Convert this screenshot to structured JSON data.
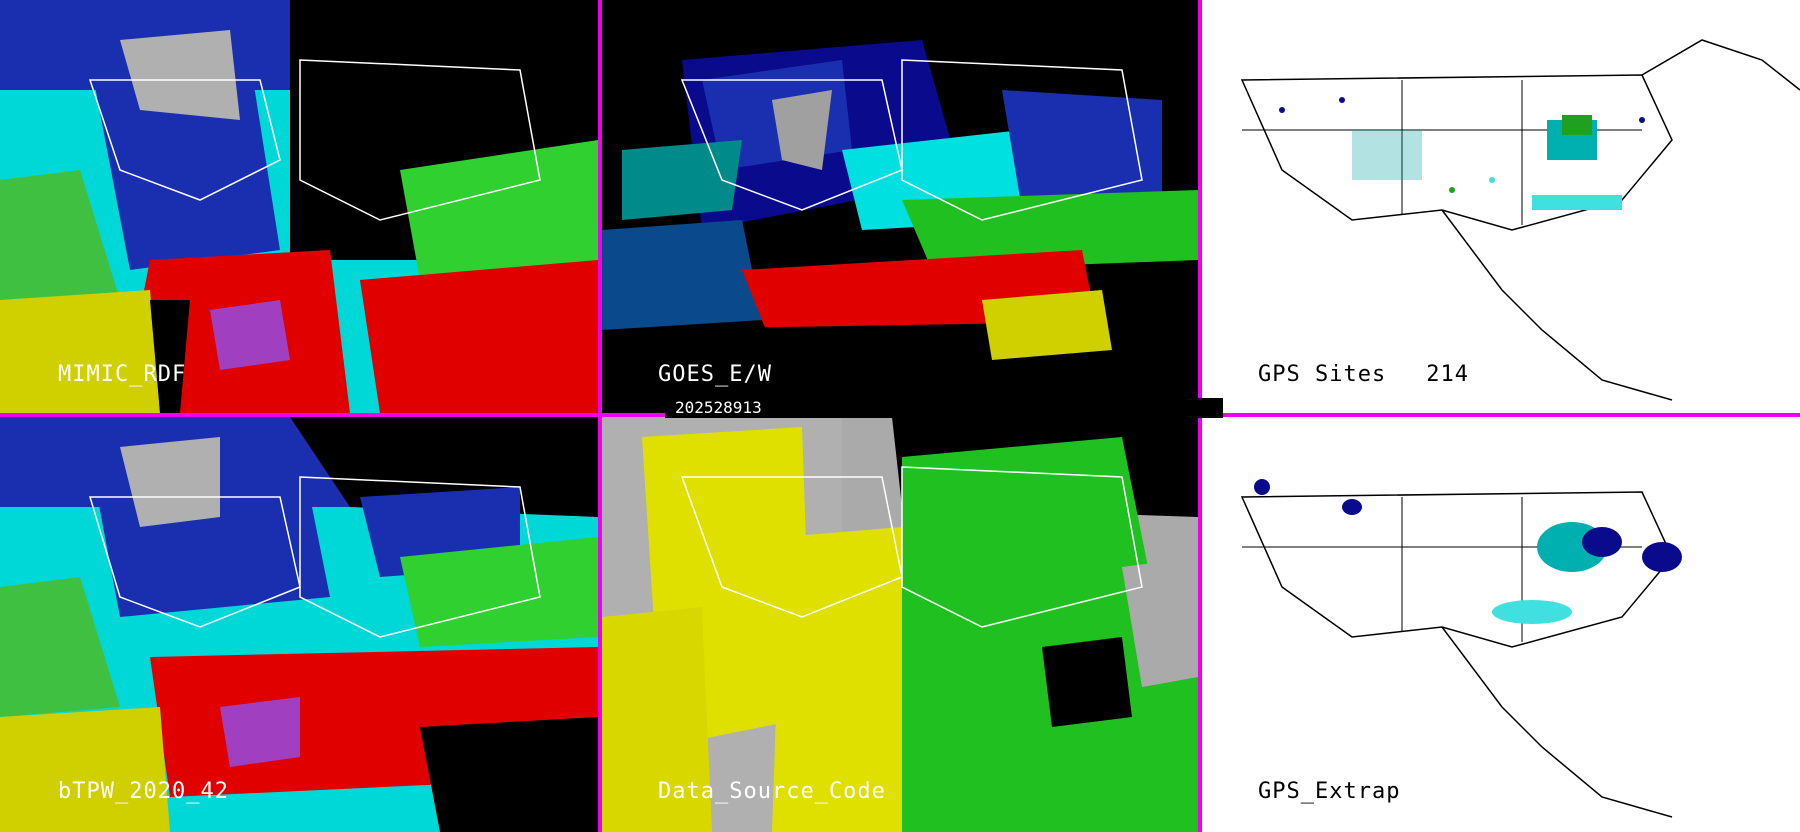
{
  "colors": {
    "divider": "#ee00ee",
    "palette": [
      "#000000",
      "#0a0a8c",
      "#2a3ad8",
      "#aaaaaa",
      "#00e0e0",
      "#00c000",
      "#40e040",
      "#e0e000",
      "#e00000",
      "#a040c0"
    ]
  },
  "panels": [
    {
      "id": "mimic-rdf",
      "label": "MIMIC_RDF",
      "theme": "dark"
    },
    {
      "id": "goes-e-w",
      "label": "GOES_E/W",
      "theme": "dark"
    },
    {
      "id": "gps-sites",
      "label": "GPS Sites",
      "count": "214",
      "theme": "light"
    },
    {
      "id": "btpw-2020-42",
      "label": "bTPW_2020_42",
      "theme": "dark"
    },
    {
      "id": "data-source-code",
      "label": "Data_Source_Code",
      "theme": "dark"
    },
    {
      "id": "gps-extrap",
      "label": "GPS_Extrap",
      "theme": "light"
    }
  ],
  "date_stamp": "202528913"
}
